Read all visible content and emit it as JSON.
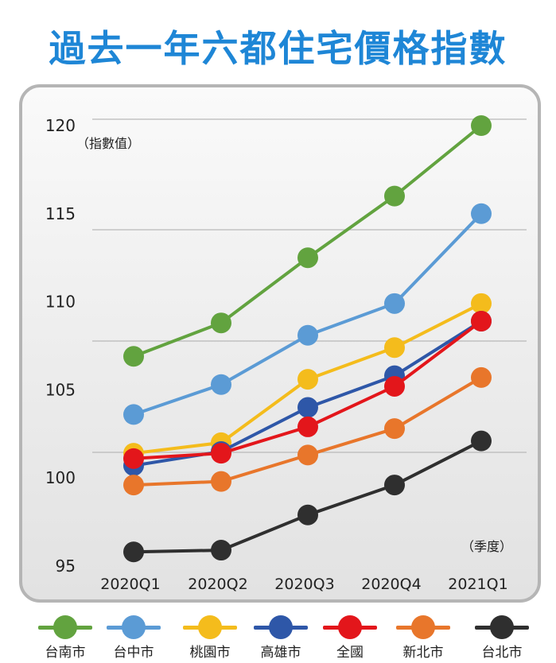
{
  "title": "過去一年六都住宅價格指數",
  "chart_data": {
    "type": "line",
    "title": "過去一年六都住宅價格指數",
    "ylabel": "（指數值）",
    "xlabel": "（季度）",
    "categories": [
      "2020Q1",
      "2020Q2",
      "2020Q3",
      "2020Q4",
      "2021Q1"
    ],
    "ylim": [
      95,
      120
    ],
    "yticks": [
      95,
      100,
      105,
      110,
      115,
      120
    ],
    "grid": true,
    "legend_position": "bottom",
    "series": [
      {
        "name": "台南市",
        "color": "#62a33f",
        "values": [
          106.9,
          108.8,
          112.5,
          116.0,
          120.0
        ]
      },
      {
        "name": "台中市",
        "color": "#5b9bd5",
        "values": [
          103.6,
          105.3,
          108.1,
          109.9,
          115.0
        ]
      },
      {
        "name": "桃園市",
        "color": "#f4bc1c",
        "values": [
          101.4,
          102.0,
          105.6,
          107.4,
          109.9
        ]
      },
      {
        "name": "高雄市",
        "color": "#2e57a8",
        "values": [
          100.7,
          101.5,
          104.0,
          105.8,
          108.9
        ]
      },
      {
        "name": "全國",
        "color": "#e3161b",
        "values": [
          101.1,
          101.4,
          102.9,
          105.2,
          108.9
        ]
      },
      {
        "name": "新北市",
        "color": "#e8762b",
        "values": [
          99.6,
          99.8,
          101.3,
          102.8,
          105.7
        ]
      },
      {
        "name": "台北市",
        "color": "#2f2f2f",
        "values": [
          95.8,
          95.9,
          97.9,
          99.6,
          102.1
        ]
      }
    ]
  },
  "legend": [
    {
      "label": "台南市",
      "color": "#62a33f"
    },
    {
      "label": "台中市",
      "color": "#5b9bd5"
    },
    {
      "label": "桃園市",
      "color": "#f4bc1c"
    },
    {
      "label": "高雄市",
      "color": "#2e57a8"
    },
    {
      "label": "全國",
      "color": "#e3161b"
    },
    {
      "label": "新北市",
      "color": "#e8762b"
    },
    {
      "label": "台北市",
      "color": "#2f2f2f"
    }
  ]
}
